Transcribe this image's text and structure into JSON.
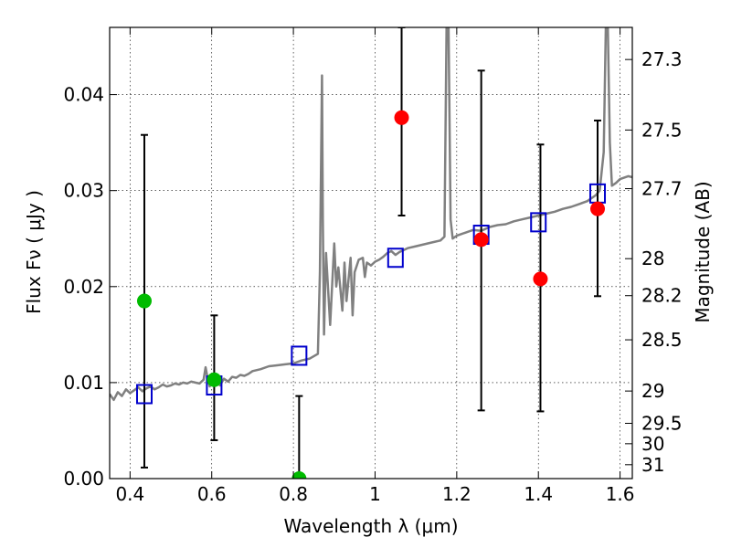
{
  "chart_data": {
    "type": "scatter",
    "xlabel": "Wavelength  λ (μm)",
    "ylabel": "Flux  Fν  ( μJy )",
    "y2label": "Magnitude (AB)",
    "xlim": [
      0.35,
      1.63
    ],
    "ylim": [
      0.0,
      0.047
    ],
    "grid": true,
    "x_ticks": [
      {
        "value": 0.4,
        "label": "0.4"
      },
      {
        "value": 0.6,
        "label": "0.6"
      },
      {
        "value": 0.8,
        "label": "0.8"
      },
      {
        "value": 1.0,
        "label": "1"
      },
      {
        "value": 1.2,
        "label": "1.2"
      },
      {
        "value": 1.4,
        "label": "1.4"
      },
      {
        "value": 1.6,
        "label": "1.6"
      }
    ],
    "y_ticks": [
      {
        "value": 0.0,
        "label": "0.00"
      },
      {
        "value": 0.01,
        "label": "0.01"
      },
      {
        "value": 0.02,
        "label": "0.02"
      },
      {
        "value": 0.03,
        "label": "0.03"
      },
      {
        "value": 0.04,
        "label": "0.04"
      }
    ],
    "mag_ticks": [
      {
        "value": 27.3,
        "label": "27.3"
      },
      {
        "value": 27.5,
        "label": "27.5"
      },
      {
        "value": 27.7,
        "label": "27.7"
      },
      {
        "value": 28.0,
        "label": "28"
      },
      {
        "value": 28.2,
        "label": "28.2"
      },
      {
        "value": 28.5,
        "label": "28.5"
      },
      {
        "value": 29.0,
        "label": "29"
      },
      {
        "value": 29.5,
        "label": "29.5"
      },
      {
        "value": 30.0,
        "label": "30"
      },
      {
        "value": 31.0,
        "label": "31"
      }
    ],
    "colors": {
      "model": "#808080",
      "detected": "#00bb00",
      "observed": "#ff0000",
      "synthetic": "#0000cc",
      "errorbar": "#000000"
    },
    "model_spectrum": {
      "x": [
        0.35,
        0.36,
        0.37,
        0.38,
        0.39,
        0.4,
        0.41,
        0.42,
        0.43,
        0.44,
        0.45,
        0.46,
        0.47,
        0.48,
        0.49,
        0.5,
        0.51,
        0.52,
        0.53,
        0.54,
        0.55,
        0.56,
        0.57,
        0.58,
        0.585,
        0.59,
        0.595,
        0.6,
        0.61,
        0.62,
        0.63,
        0.64,
        0.65,
        0.66,
        0.67,
        0.68,
        0.69,
        0.7,
        0.72,
        0.74,
        0.76,
        0.78,
        0.8,
        0.82,
        0.84,
        0.86,
        0.865,
        0.87,
        0.872,
        0.875,
        0.878,
        0.88,
        0.89,
        0.9,
        0.905,
        0.91,
        0.92,
        0.925,
        0.93,
        0.94,
        0.945,
        0.95,
        0.96,
        0.97,
        0.975,
        0.98,
        0.99,
        1.0,
        1.01,
        1.02,
        1.03,
        1.04,
        1.05,
        1.06,
        1.08,
        1.1,
        1.12,
        1.14,
        1.16,
        1.17,
        1.175,
        1.18,
        1.185,
        1.19,
        1.2,
        1.22,
        1.24,
        1.26,
        1.28,
        1.3,
        1.32,
        1.34,
        1.36,
        1.38,
        1.4,
        1.42,
        1.44,
        1.46,
        1.48,
        1.5,
        1.52,
        1.54,
        1.55,
        1.56,
        1.565,
        1.57,
        1.575,
        1.58,
        1.59,
        1.6,
        1.62,
        1.63
      ],
      "y": [
        0.0088,
        0.0082,
        0.009,
        0.0086,
        0.0093,
        0.0089,
        0.0092,
        0.0095,
        0.0091,
        0.0094,
        0.0096,
        0.0093,
        0.0095,
        0.0098,
        0.0096,
        0.0097,
        0.0099,
        0.0098,
        0.01,
        0.0099,
        0.0101,
        0.01,
        0.0099,
        0.0103,
        0.0116,
        0.0104,
        0.0096,
        0.0101,
        0.0105,
        0.0097,
        0.0104,
        0.0101,
        0.0106,
        0.0105,
        0.0108,
        0.0107,
        0.0109,
        0.0112,
        0.0114,
        0.0117,
        0.0118,
        0.0119,
        0.012,
        0.0123,
        0.0125,
        0.013,
        0.0215,
        0.042,
        0.027,
        0.015,
        0.0205,
        0.0235,
        0.016,
        0.0245,
        0.02,
        0.022,
        0.0175,
        0.0225,
        0.0185,
        0.023,
        0.017,
        0.0215,
        0.0228,
        0.023,
        0.021,
        0.0225,
        0.0222,
        0.0226,
        0.0228,
        0.0231,
        0.0235,
        0.0237,
        0.0233,
        0.0236,
        0.024,
        0.0242,
        0.0244,
        0.0246,
        0.0248,
        0.0252,
        0.047,
        0.047,
        0.027,
        0.025,
        0.0253,
        0.0256,
        0.0259,
        0.0258,
        0.0262,
        0.0264,
        0.0265,
        0.0268,
        0.027,
        0.0272,
        0.0274,
        0.0276,
        0.0278,
        0.0281,
        0.0283,
        0.0286,
        0.0289,
        0.0295,
        0.03,
        0.034,
        0.047,
        0.047,
        0.035,
        0.0305,
        0.0308,
        0.0312,
        0.0315,
        0.0314
      ]
    },
    "synthetic_photometry": {
      "x": [
        0.435,
        0.606,
        0.814,
        1.05,
        1.26,
        1.4,
        1.545
      ],
      "y": [
        0.0088,
        0.0097,
        0.0128,
        0.023,
        0.0254,
        0.0267,
        0.0297
      ]
    },
    "detections": {
      "x": [
        0.435,
        0.606,
        0.814
      ],
      "y": [
        0.0185,
        0.0103,
        0.0
      ],
      "err_low": [
        0.00115,
        0.004,
        0.0
      ],
      "err_high": [
        0.0358,
        0.017,
        0.0086
      ]
    },
    "upper_points": {
      "x": [
        1.065,
        1.26,
        1.405,
        1.545
      ],
      "y": [
        0.0376,
        0.0249,
        0.0208,
        0.0281
      ],
      "err_low": [
        0.0274,
        0.0071,
        0.007,
        0.019
      ],
      "err_high": [
        0.047,
        0.0425,
        0.0348,
        0.0373
      ]
    }
  }
}
